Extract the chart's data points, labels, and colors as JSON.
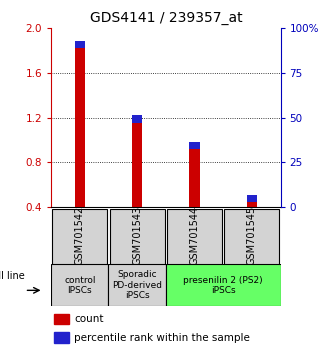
{
  "title": "GDS4141 / 239357_at",
  "samples": [
    "GSM701542",
    "GSM701543",
    "GSM701544",
    "GSM701545"
  ],
  "count_values": [
    1.82,
    1.15,
    0.92,
    0.45
  ],
  "percentile_values": [
    0.07,
    0.07,
    0.06,
    0.06
  ],
  "base_value": 0.4,
  "ylim_left": [
    0.4,
    2.0
  ],
  "ylim_right": [
    0,
    100
  ],
  "yticks_left": [
    0.4,
    0.8,
    1.2,
    1.6,
    2.0
  ],
  "yticks_right": [
    0,
    25,
    50,
    75,
    100
  ],
  "ytick_labels_right": [
    "0",
    "25",
    "50",
    "75",
    "100%"
  ],
  "bar_width": 0.18,
  "count_color": "#cc0000",
  "percentile_color": "#2222cc",
  "background_color": "#ffffff",
  "left_axis_color": "#cc0000",
  "right_axis_color": "#0000bb",
  "tick_label_fontsize": 7.5,
  "title_fontsize": 10,
  "sample_label_fontsize": 7,
  "group_label_fontsize": 6.5,
  "grid_dotted_ticks": [
    0.8,
    1.2,
    1.6
  ],
  "cell_line_groups": [
    {
      "label": "control\nIPSCs",
      "start": 0,
      "end": 1,
      "color": "#d3d3d3"
    },
    {
      "label": "Sporadic\nPD-derived\niPSCs",
      "start": 1,
      "end": 2,
      "color": "#d3d3d3"
    },
    {
      "label": "presenilin 2 (PS2)\niPSCs",
      "start": 2,
      "end": 4,
      "color": "#66ff66"
    }
  ]
}
